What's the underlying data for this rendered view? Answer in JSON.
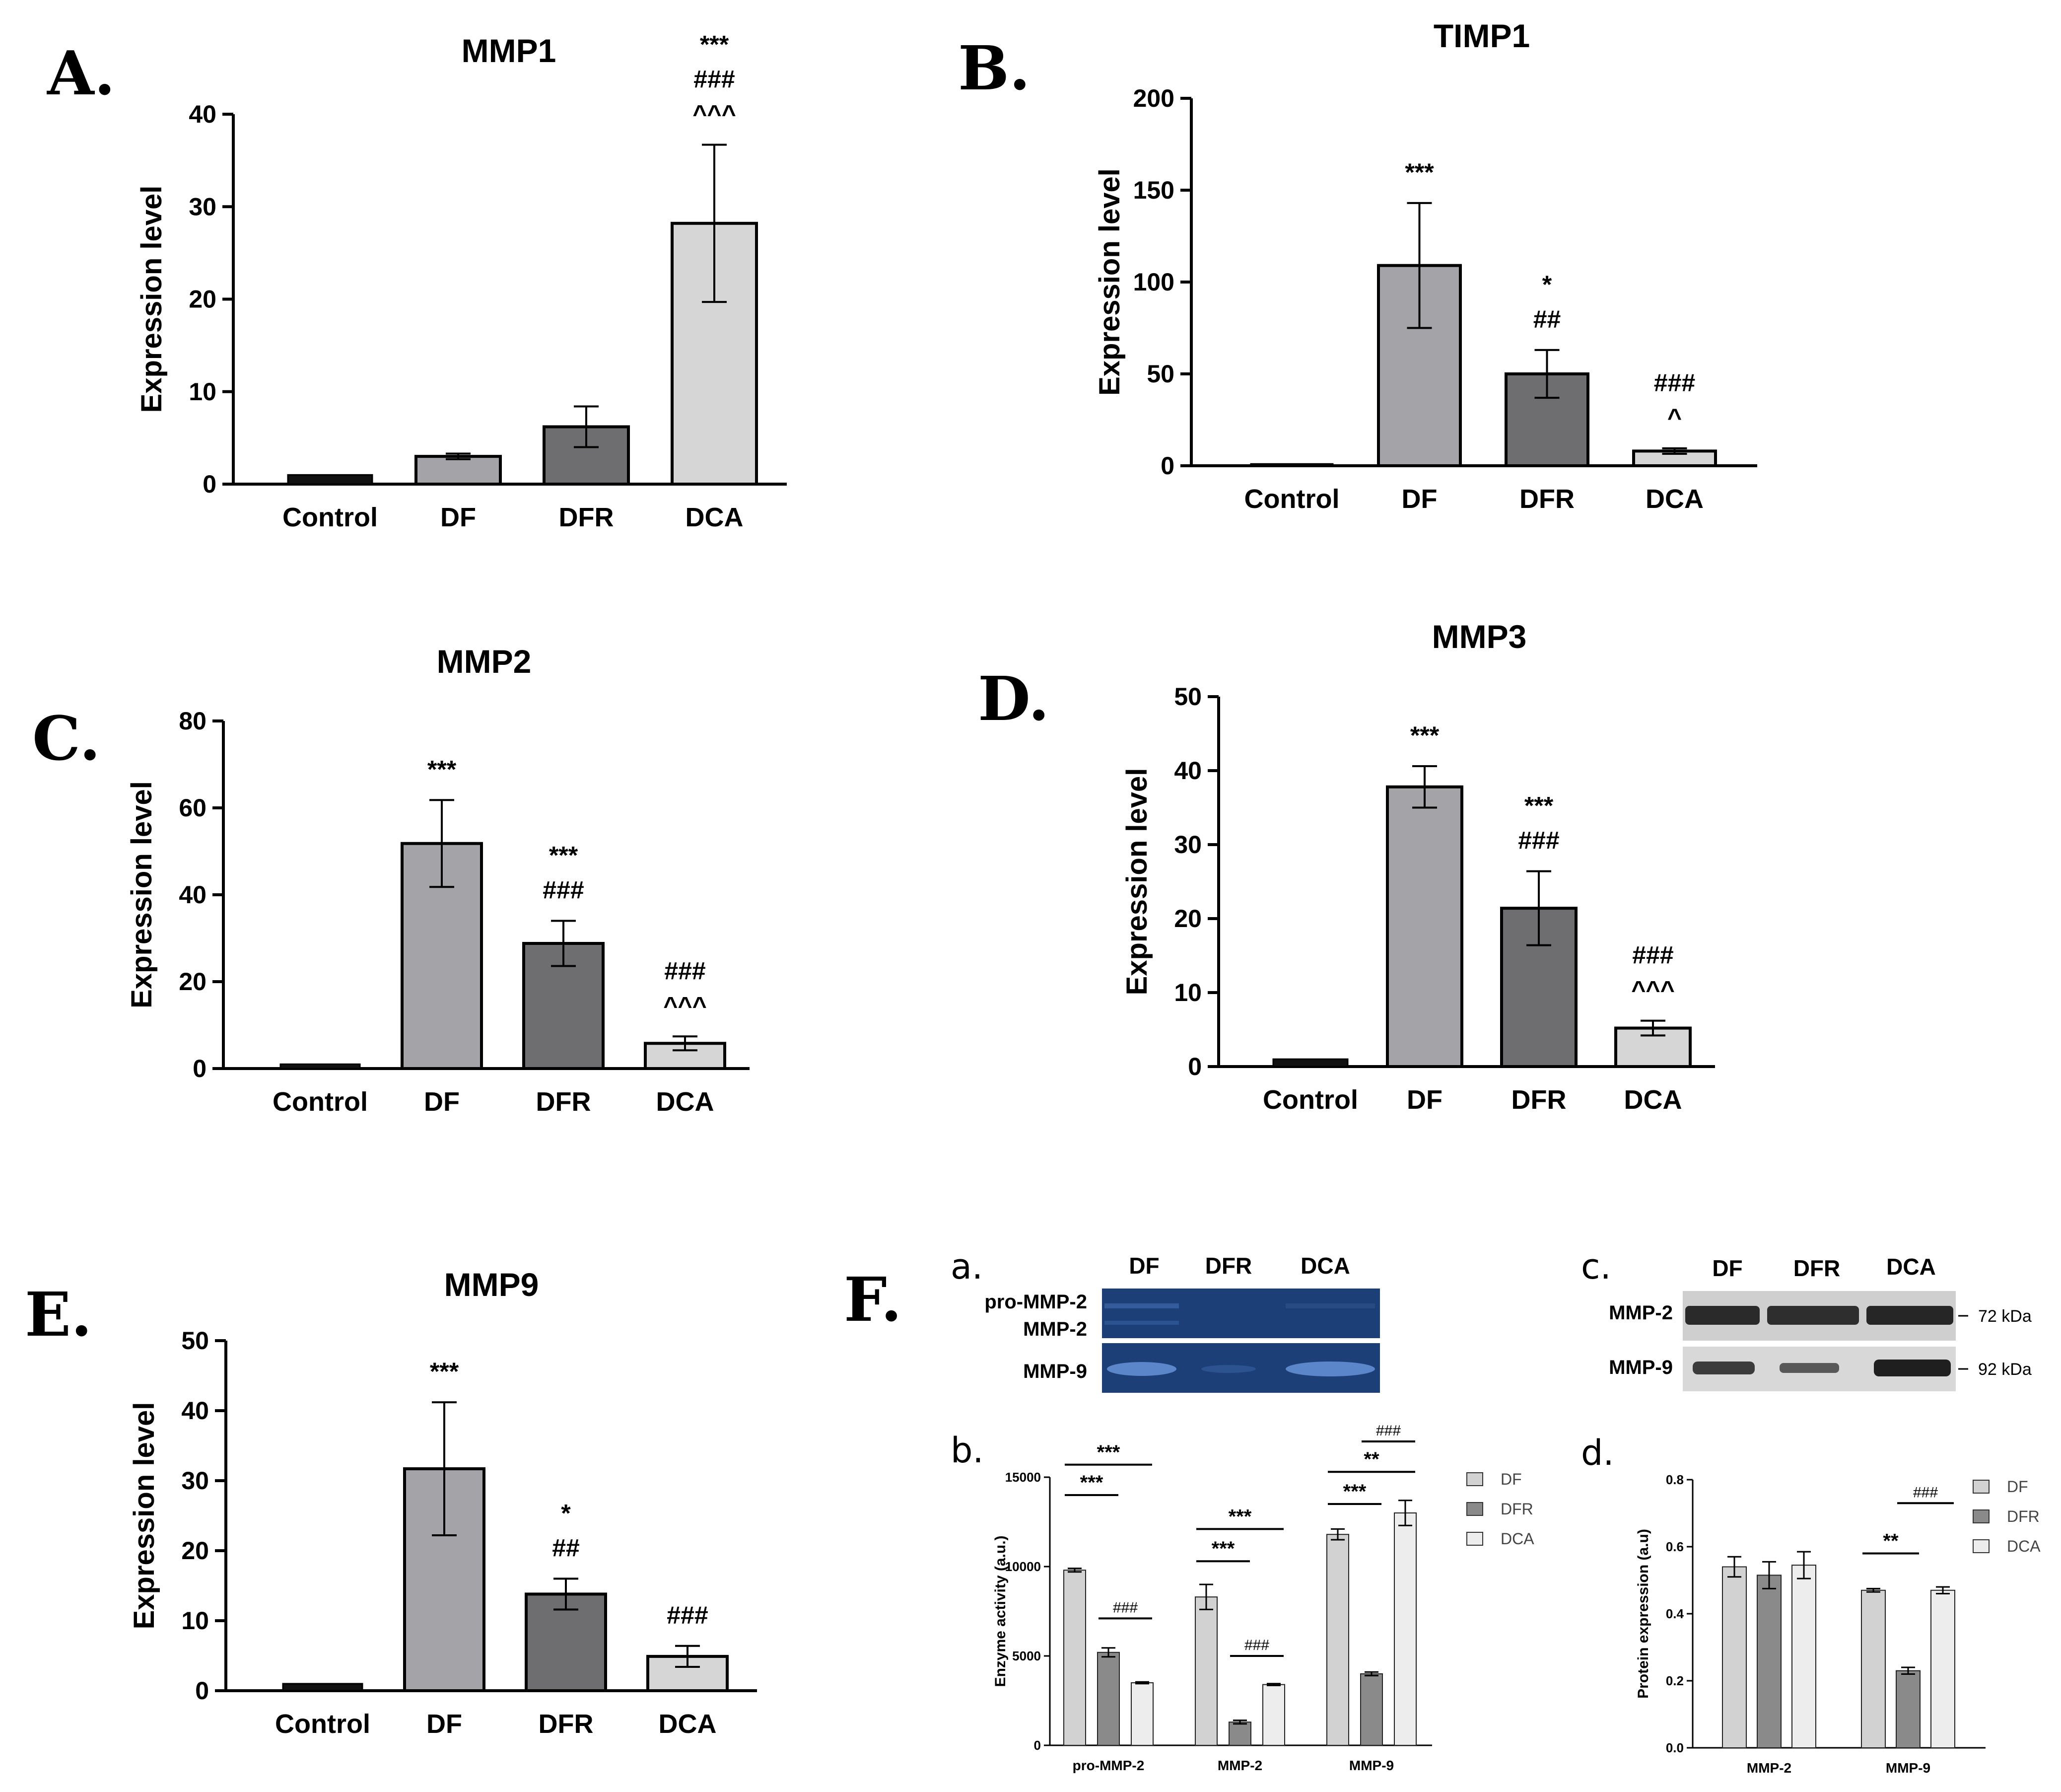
{
  "panels": {
    "A": {
      "letter": "A."
    },
    "B": {
      "letter": "B."
    },
    "C": {
      "letter": "C."
    },
    "D": {
      "letter": "D."
    },
    "E": {
      "letter": "E."
    },
    "F": {
      "letter": "F.",
      "sub": {
        "a": "a.",
        "b": "b.",
        "c": "c.",
        "d": "d."
      }
    }
  },
  "zymogram": {
    "lanes": [
      "DF",
      "DFR",
      "DCA"
    ],
    "row_labels": [
      "pro-MMP-2",
      "MMP-2",
      "MMP-9"
    ]
  },
  "western": {
    "lanes": [
      "DF",
      "DFR",
      "DCA"
    ],
    "row_labels": [
      "MMP-2",
      "MMP-9"
    ],
    "sizes": [
      "72 kDa",
      "92 kDa"
    ]
  },
  "colors": {
    "control": "#111111",
    "DF": "#a4a4a8",
    "DFR": "#6e6e70",
    "DCA": "#d6d6d6",
    "f_DF": "#d2d2d2",
    "f_DFR": "#8a8a8a",
    "f_DCA": "#ededed",
    "gel_bg": "#1d3f78",
    "blot_bg": "#cfcfcf"
  },
  "chart_data": [
    {
      "id": "A",
      "type": "bar",
      "title": "MMP1",
      "ylabel": "Expression level",
      "xlabel": "",
      "ylim": [
        0,
        40
      ],
      "yticks": [
        0,
        10,
        20,
        30,
        40
      ],
      "categories": [
        "Control",
        "DF",
        "DFR",
        "DCA"
      ],
      "values": [
        1,
        3,
        6.2,
        28.2
      ],
      "errors": [
        0,
        0.3,
        2.2,
        8.5
      ],
      "annotations": [
        [],
        [],
        [],
        [
          "***",
          "###",
          "^^^"
        ]
      ]
    },
    {
      "id": "B",
      "type": "bar",
      "title": "TIMP1",
      "ylabel": "Expression level",
      "xlabel": "",
      "ylim": [
        0,
        200
      ],
      "yticks": [
        0,
        50,
        100,
        150,
        200
      ],
      "categories": [
        "Control",
        "DF",
        "DFR",
        "DCA"
      ],
      "values": [
        1,
        109,
        50,
        8
      ],
      "errors": [
        0,
        34,
        13,
        1.5
      ],
      "annotations": [
        [],
        [
          "***"
        ],
        [
          "*",
          "##"
        ],
        [
          "###",
          "^"
        ]
      ]
    },
    {
      "id": "C",
      "type": "bar",
      "title": "MMP2",
      "ylabel": "Expression level",
      "xlabel": "",
      "ylim": [
        0,
        80
      ],
      "yticks": [
        0,
        20,
        40,
        60,
        80
      ],
      "categories": [
        "Control",
        "DF",
        "DFR",
        "DCA"
      ],
      "values": [
        1,
        51.8,
        28.8,
        5.8
      ],
      "errors": [
        0,
        10,
        5.2,
        1.6
      ],
      "annotations": [
        [],
        [
          "***"
        ],
        [
          "***",
          "###"
        ],
        [
          "###",
          "^^^"
        ]
      ]
    },
    {
      "id": "D",
      "type": "bar",
      "title": "MMP3",
      "ylabel": "Expression level",
      "xlabel": "",
      "ylim": [
        0,
        50
      ],
      "yticks": [
        0,
        10,
        20,
        30,
        40,
        50
      ],
      "categories": [
        "Control",
        "DF",
        "DFR",
        "DCA"
      ],
      "values": [
        1,
        37.8,
        21.4,
        5.2
      ],
      "errors": [
        0,
        2.8,
        5,
        1
      ],
      "annotations": [
        [],
        [
          "***"
        ],
        [
          "***",
          "###"
        ],
        [
          "###",
          "^^^"
        ]
      ]
    },
    {
      "id": "E",
      "type": "bar",
      "title": "MMP9",
      "ylabel": "Expression level",
      "xlabel": "",
      "ylim": [
        0,
        50
      ],
      "yticks": [
        0,
        10,
        20,
        30,
        40,
        50
      ],
      "categories": [
        "Control",
        "DF",
        "DFR",
        "DCA"
      ],
      "values": [
        1,
        31.7,
        13.8,
        4.9
      ],
      "errors": [
        0,
        9.5,
        2.2,
        1.5
      ],
      "annotations": [
        [],
        [
          "***"
        ],
        [
          "*",
          "##"
        ],
        [
          "###"
        ]
      ]
    },
    {
      "id": "Fb",
      "type": "bar",
      "title": "",
      "ylabel": "Enzyme activity (a.u.)",
      "xlabel": "",
      "ylim": [
        0,
        15000
      ],
      "yticks": [
        0,
        5000,
        10000,
        15000
      ],
      "categories": [
        "pro-MMP-2",
        "MMP-2",
        "MMP-9"
      ],
      "series": [
        {
          "name": "DF",
          "values": [
            9800,
            8300,
            11800
          ],
          "errors": [
            100,
            700,
            300
          ]
        },
        {
          "name": "DFR",
          "values": [
            5200,
            1300,
            4000
          ],
          "errors": [
            250,
            100,
            100
          ]
        },
        {
          "name": "DCA",
          "values": [
            3500,
            3400,
            13000
          ],
          "errors": [
            50,
            50,
            700
          ]
        }
      ],
      "legend": [
        "DF",
        "DFR",
        "DCA"
      ],
      "comparisons": [
        {
          "group": 0,
          "from": 0,
          "to": 1,
          "label": "***",
          "level": 14000,
          "style": "bold"
        },
        {
          "group": 0,
          "from": 0,
          "to": 2,
          "label": "***",
          "level": 15700,
          "style": "bold"
        },
        {
          "group": 0,
          "from": 1,
          "to": 2,
          "label": "###",
          "level": 7100,
          "style": "light"
        },
        {
          "group": 1,
          "from": 0,
          "to": 1,
          "label": "***",
          "level": 10300,
          "style": "bold"
        },
        {
          "group": 1,
          "from": 0,
          "to": 2,
          "label": "***",
          "level": 12100,
          "style": "bold"
        },
        {
          "group": 1,
          "from": 1,
          "to": 2,
          "label": "###",
          "level": 5000,
          "style": "light"
        },
        {
          "group": 2,
          "from": 0,
          "to": 1,
          "label": "***",
          "level": 13500,
          "style": "bold"
        },
        {
          "group": 2,
          "from": 0,
          "to": 2,
          "label": "**",
          "level": 15300,
          "style": "bold"
        },
        {
          "group": 2,
          "from": 1,
          "to": 2,
          "label": "###",
          "level": 17000,
          "style": "light"
        }
      ]
    },
    {
      "id": "Fd",
      "type": "bar",
      "title": "",
      "ylabel": "Protein expression (a.u)",
      "xlabel": "",
      "ylim": [
        0,
        0.8
      ],
      "yticks": [
        0.0,
        0.2,
        0.4,
        0.6,
        0.8
      ],
      "categories": [
        "MMP-2",
        "MMP-9"
      ],
      "series": [
        {
          "name": "DF",
          "values": [
            0.54,
            0.47
          ],
          "errors": [
            0.03,
            0.005
          ]
        },
        {
          "name": "DFR",
          "values": [
            0.515,
            0.23
          ],
          "errors": [
            0.04,
            0.01
          ]
        },
        {
          "name": "DCA",
          "values": [
            0.545,
            0.47
          ],
          "errors": [
            0.04,
            0.01
          ]
        }
      ],
      "legend": [
        "DF",
        "DFR",
        "DCA"
      ],
      "comparisons": [
        {
          "group": 1,
          "from": 0,
          "to": 1,
          "label": "**",
          "level": 0.58,
          "style": "bold"
        },
        {
          "group": 1,
          "from": 1,
          "to": 2,
          "label": "###",
          "level": 0.73,
          "style": "light"
        }
      ]
    }
  ]
}
